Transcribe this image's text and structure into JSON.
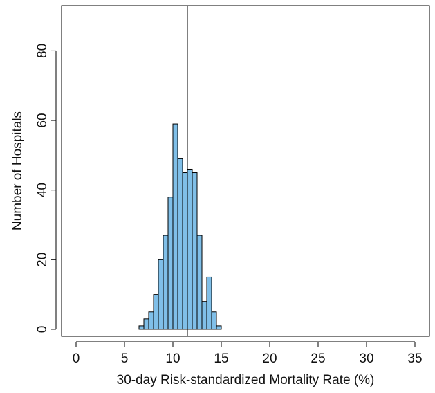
{
  "chart_data": {
    "type": "bar",
    "title": "",
    "xlabel": "30-day Risk-standardized Mortality Rate (%)",
    "ylabel": "Number of Hospitals",
    "xlim": [
      -1.5,
      36.5
    ],
    "ylim": [
      -2,
      93
    ],
    "x_ticks": [
      0,
      5,
      10,
      15,
      20,
      25,
      30,
      35
    ],
    "y_ticks": [
      0,
      20,
      40,
      60,
      80
    ],
    "bin_width": 0.5,
    "bins": [
      {
        "x0": 6.5,
        "x1": 7.0,
        "count": 1
      },
      {
        "x0": 7.0,
        "x1": 7.5,
        "count": 3
      },
      {
        "x0": 7.5,
        "x1": 8.0,
        "count": 5
      },
      {
        "x0": 8.0,
        "x1": 8.5,
        "count": 10
      },
      {
        "x0": 8.5,
        "x1": 9.0,
        "count": 20
      },
      {
        "x0": 9.0,
        "x1": 9.5,
        "count": 27
      },
      {
        "x0": 9.5,
        "x1": 10.0,
        "count": 38
      },
      {
        "x0": 10.0,
        "x1": 10.5,
        "count": 59
      },
      {
        "x0": 10.5,
        "x1": 11.0,
        "count": 49
      },
      {
        "x0": 11.0,
        "x1": 11.5,
        "count": 45
      },
      {
        "x0": 11.5,
        "x1": 12.0,
        "count": 46
      },
      {
        "x0": 12.0,
        "x1": 12.5,
        "count": 45
      },
      {
        "x0": 12.5,
        "x1": 13.0,
        "count": 27
      },
      {
        "x0": 13.0,
        "x1": 13.5,
        "count": 8
      },
      {
        "x0": 13.5,
        "x1": 14.0,
        "count": 15
      },
      {
        "x0": 14.0,
        "x1": 14.5,
        "count": 5
      },
      {
        "x0": 14.5,
        "x1": 15.0,
        "count": 1
      }
    ],
    "reference_line_x": 11.5,
    "bar_color": "#80BFE8",
    "bar_edge_color": "#000000",
    "grid": false,
    "legend": "none"
  }
}
